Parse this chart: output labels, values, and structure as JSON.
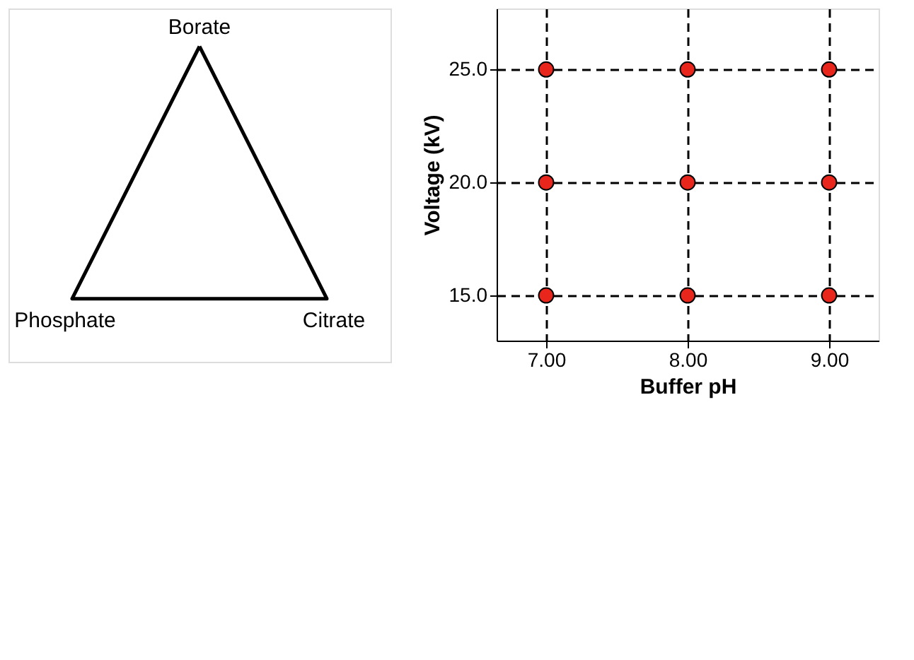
{
  "chart_data": [
    {
      "type": "other",
      "annotations": [
        "Borate",
        "Phosphate",
        "Citrate"
      ]
    },
    {
      "type": "scatter",
      "xlabel": "Buffer pH",
      "ylabel": "Voltage (kV)",
      "x": [
        7,
        8,
        9,
        7,
        8,
        9,
        7,
        8,
        9
      ],
      "series": [
        {
          "color": "#e8261c",
          "values": [
            25,
            25,
            25,
            20,
            20,
            20,
            15,
            15,
            15
          ]
        }
      ],
      "xlim": [
        6.65,
        9.35
      ],
      "ylim": [
        13.0,
        27.7
      ],
      "xticks": [
        {
          "value": 7,
          "label": "7.00"
        },
        {
          "value": 8,
          "label": "8.00"
        },
        {
          "value": 9,
          "label": "9.00"
        }
      ],
      "yticks": [
        {
          "value": 15,
          "label": "15.0"
        },
        {
          "value": 20,
          "label": "20.0"
        },
        {
          "value": 25,
          "label": "25.0"
        }
      ],
      "grid": true,
      "marker": "circle",
      "legend": false
    }
  ]
}
